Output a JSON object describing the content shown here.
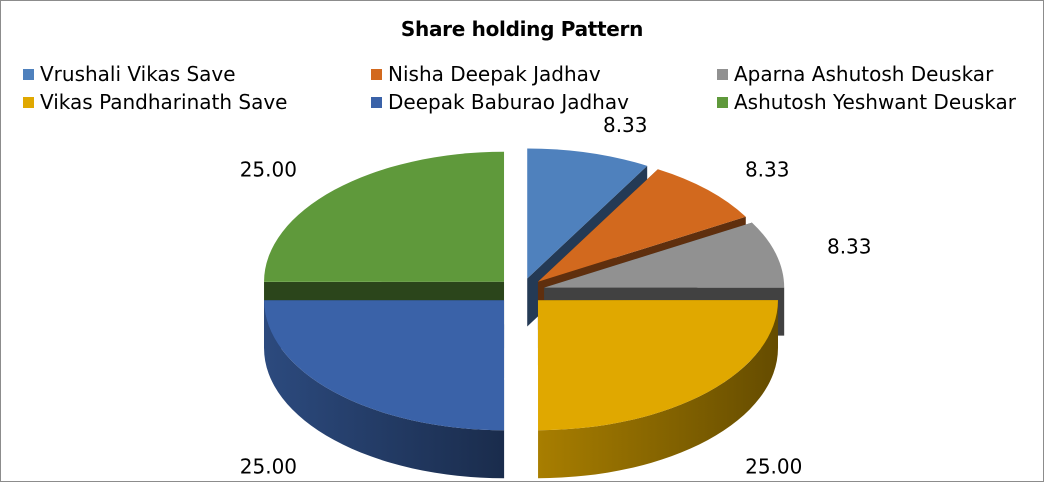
{
  "chart_data": {
    "type": "pie",
    "title": "Share holding  Pattern",
    "legend_position": "top",
    "slices": [
      {
        "name": "Vrushali Vikas Save",
        "value": 8.33,
        "label": "8.33",
        "color": "#4f81bd"
      },
      {
        "name": "Nisha Deepak Jadhav",
        "value": 8.33,
        "label": "8.33",
        "color": "#d2691e"
      },
      {
        "name": "Aparna Ashutosh Deuskar",
        "value": 8.33,
        "label": "8.33",
        "color": "#919191"
      },
      {
        "name": "Vikas Pandharinath Save",
        "value": 25.0,
        "label": "25.00",
        "color": "#e0a800"
      },
      {
        "name": "Deepak Baburao Jadhav",
        "value": 25.0,
        "label": "25.00",
        "color": "#3a62a8"
      },
      {
        "name": "Ashutosh Yeshwant Deuskar",
        "value": 25.0,
        "label": "25.00",
        "color": "#5f993b"
      }
    ]
  }
}
